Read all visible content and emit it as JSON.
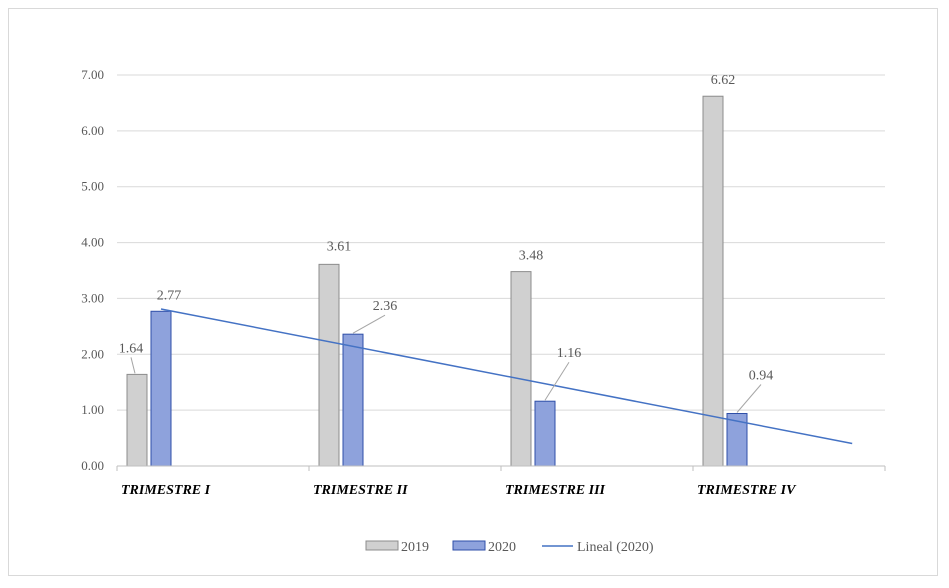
{
  "chart_data": {
    "type": "bar",
    "categories": [
      "TRIMESTRE I",
      "TRIMESTRE II",
      "TRIMESTRE III",
      "TRIMESTRE IV"
    ],
    "series": [
      {
        "name": "2019",
        "values": [
          1.64,
          3.61,
          3.48,
          6.62
        ],
        "color": "#d0d0d0",
        "stroke": "#8c8c8c"
      },
      {
        "name": "2020",
        "values": [
          2.77,
          2.36,
          1.16,
          0.94
        ],
        "color": "#8ea2dc",
        "stroke": "#2f4fa8"
      }
    ],
    "trendline": {
      "name": "Lineal (2020)",
      "series": "2020",
      "type": "linear",
      "color": "#4472c4"
    },
    "data_labels": [
      "1.64",
      "2.77",
      "3.61",
      "2.36",
      "3.48",
      "1.16",
      "6.62",
      "0.94"
    ],
    "yticks": [
      "0.00",
      "1.00",
      "2.00",
      "3.00",
      "4.00",
      "5.00",
      "6.00",
      "7.00"
    ],
    "ylim": [
      0,
      7
    ],
    "title": "",
    "xlabel": "",
    "ylabel": "",
    "grid": true,
    "legend": "bottom"
  }
}
